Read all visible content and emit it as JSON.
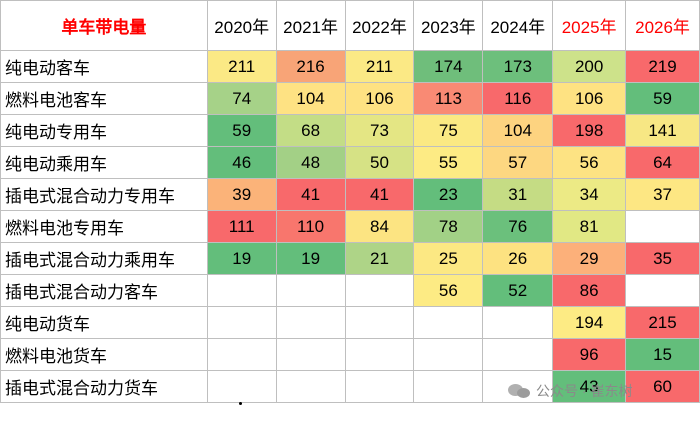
{
  "header": {
    "label": "单车带电量",
    "years": [
      "2020年",
      "2021年",
      "2022年",
      "2023年",
      "2024年",
      "2025年",
      "2026年"
    ]
  },
  "rows": [
    {
      "name": "纯电动客车",
      "cells": [
        {
          "v": "211",
          "c": "#fbe985"
        },
        {
          "v": "216",
          "c": "#f8a477"
        },
        {
          "v": "211",
          "c": "#fbe985"
        },
        {
          "v": "174",
          "c": "#6fbe7b"
        },
        {
          "v": "173",
          "c": "#6dbf7c"
        },
        {
          "v": "200",
          "c": "#cde28a"
        },
        {
          "v": "219",
          "c": "#f8696b"
        }
      ]
    },
    {
      "name": "燃料电池客车",
      "cells": [
        {
          "v": "74",
          "c": "#a6d288"
        },
        {
          "v": "104",
          "c": "#fee283"
        },
        {
          "v": "106",
          "c": "#fee282"
        },
        {
          "v": "113",
          "c": "#f98a74"
        },
        {
          "v": "116",
          "c": "#f8696b"
        },
        {
          "v": "106",
          "c": "#fee282"
        },
        {
          "v": "59",
          "c": "#63be7b"
        }
      ]
    },
    {
      "name": "纯电动专用车",
      "cells": [
        {
          "v": "59",
          "c": "#63be7b"
        },
        {
          "v": "68",
          "c": "#c3dd86"
        },
        {
          "v": "73",
          "c": "#e4e684"
        },
        {
          "v": "75",
          "c": "#fbe983"
        },
        {
          "v": "104",
          "c": "#fdd380"
        },
        {
          "v": "198",
          "c": "#f8696b"
        },
        {
          "v": "141",
          "c": "#f7e784"
        }
      ]
    },
    {
      "name": "纯电动乘用车",
      "cells": [
        {
          "v": "46",
          "c": "#63be7b"
        },
        {
          "v": "48",
          "c": "#a3d086"
        },
        {
          "v": "50",
          "c": "#d6e285"
        },
        {
          "v": "55",
          "c": "#fdeb84"
        },
        {
          "v": "57",
          "c": "#fdd781"
        },
        {
          "v": "56",
          "c": "#fde383"
        },
        {
          "v": "64",
          "c": "#f8696b"
        }
      ]
    },
    {
      "name": "插电式混合动力专用车",
      "cells": [
        {
          "v": "39",
          "c": "#fbb379"
        },
        {
          "v": "41",
          "c": "#f8696b"
        },
        {
          "v": "41",
          "c": "#f8696b"
        },
        {
          "v": "23",
          "c": "#63be7b"
        },
        {
          "v": "31",
          "c": "#c5dc84"
        },
        {
          "v": "34",
          "c": "#ecea85"
        },
        {
          "v": "37",
          "c": "#fde783"
        }
      ]
    },
    {
      "name": "燃料电池专用车",
      "cells": [
        {
          "v": "111",
          "c": "#f8696b"
        },
        {
          "v": "110",
          "c": "#f8766d"
        },
        {
          "v": "84",
          "c": "#fce482"
        },
        {
          "v": "78",
          "c": "#a2d186"
        },
        {
          "v": "76",
          "c": "#6bc07c"
        },
        {
          "v": "81",
          "c": "#e1e884"
        },
        {
          "v": "",
          "c": "#ffffff"
        }
      ]
    },
    {
      "name": "插电式混合动力乘用车",
      "cells": [
        {
          "v": "19",
          "c": "#63be7b"
        },
        {
          "v": "19",
          "c": "#63be7b"
        },
        {
          "v": "21",
          "c": "#aed487"
        },
        {
          "v": "25",
          "c": "#fce883"
        },
        {
          "v": "26",
          "c": "#fde281"
        },
        {
          "v": "29",
          "c": "#fcb07a"
        },
        {
          "v": "35",
          "c": "#f8696b"
        }
      ]
    },
    {
      "name": "插电式混合动力客车",
      "cells": [
        {
          "v": "",
          "c": "#ffffff"
        },
        {
          "v": "",
          "c": "#ffffff"
        },
        {
          "v": "",
          "c": "#ffffff"
        },
        {
          "v": "56",
          "c": "#fdeb84"
        },
        {
          "v": "52",
          "c": "#63be7b"
        },
        {
          "v": "86",
          "c": "#f8696b"
        },
        {
          "v": "",
          "c": "#ffffff"
        }
      ]
    },
    {
      "name": "纯电动货车",
      "cells": [
        {
          "v": "",
          "c": "#ffffff"
        },
        {
          "v": "",
          "c": "#ffffff"
        },
        {
          "v": "",
          "c": "#ffffff"
        },
        {
          "v": "",
          "c": "#ffffff"
        },
        {
          "v": "",
          "c": "#ffffff"
        },
        {
          "v": "194",
          "c": "#fdeb84"
        },
        {
          "v": "215",
          "c": "#f8696b"
        }
      ]
    },
    {
      "name": "燃料电池货车",
      "cells": [
        {
          "v": "",
          "c": "#ffffff"
        },
        {
          "v": "",
          "c": "#ffffff"
        },
        {
          "v": "",
          "c": "#ffffff"
        },
        {
          "v": "",
          "c": "#ffffff"
        },
        {
          "v": "",
          "c": "#ffffff"
        },
        {
          "v": "96",
          "c": "#f8696b"
        },
        {
          "v": "15",
          "c": "#63be7b"
        }
      ]
    },
    {
      "name": "插电式混合动力货车",
      "cells": [
        {
          "v": "",
          "c": "#ffffff"
        },
        {
          "v": "",
          "c": "#ffffff"
        },
        {
          "v": "",
          "c": "#ffffff"
        },
        {
          "v": "",
          "c": "#ffffff"
        },
        {
          "v": "",
          "c": "#ffffff"
        },
        {
          "v": "43",
          "c": "#63be7b"
        },
        {
          "v": "60",
          "c": "#f8696b"
        }
      ]
    }
  ],
  "watermark": "公众号 · 崔东树",
  "stray_mark": "·"
}
